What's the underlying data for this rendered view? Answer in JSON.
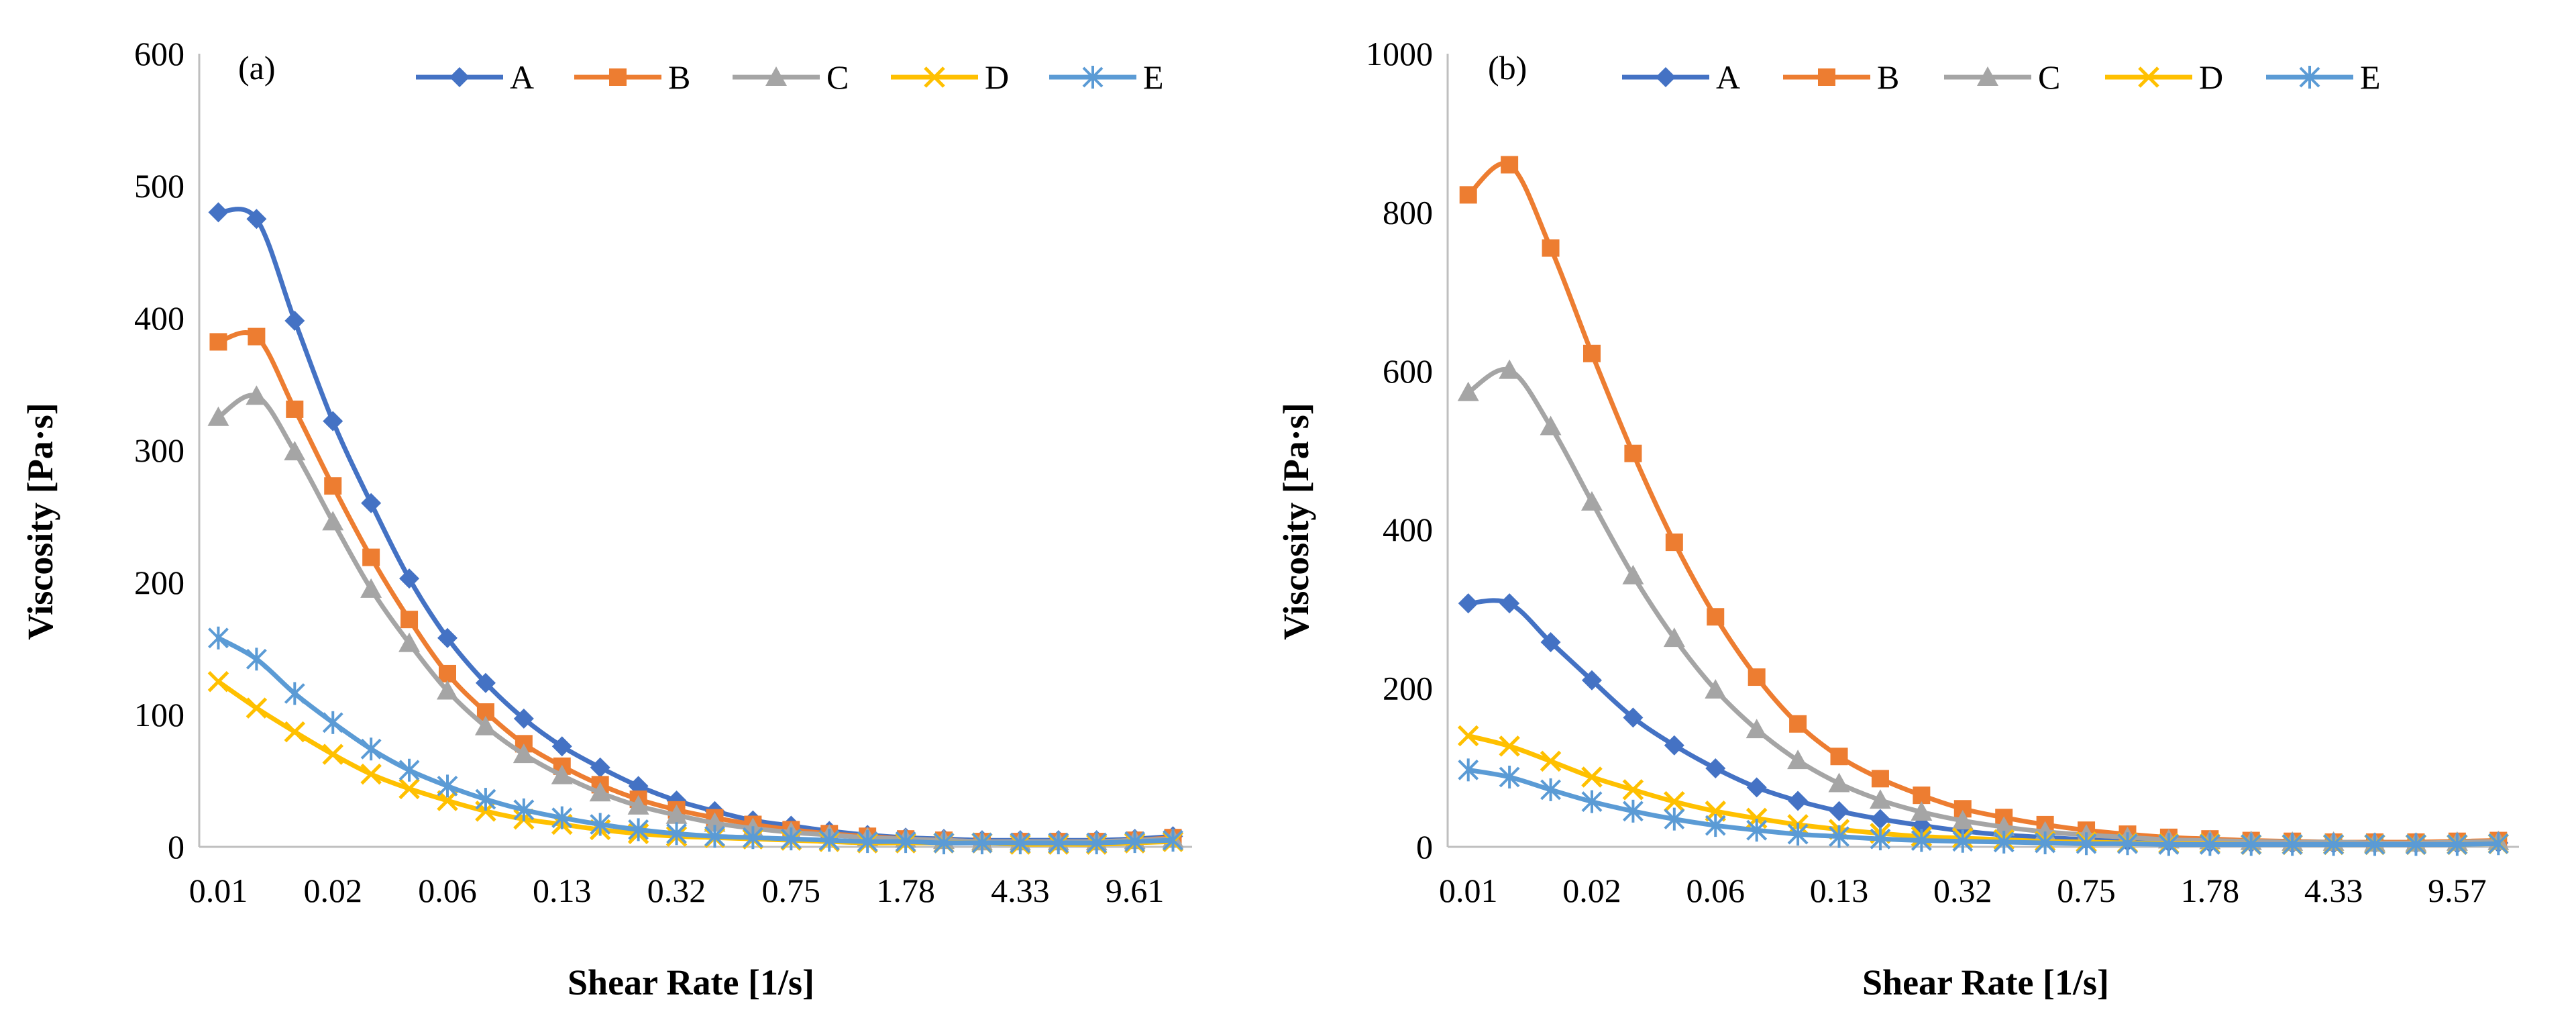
{
  "chart_data": [
    {
      "type": "line",
      "panel_label": "(a)",
      "xlabel": "Shear Rate [1/s]",
      "ylabel": "Viscosity [Pa·s]",
      "ylim": [
        0,
        600
      ],
      "yticks": [
        "0",
        "100",
        "200",
        "300",
        "400",
        "500",
        "600"
      ],
      "xticks": [
        "0.01",
        "0.02",
        "0.06",
        "0.13",
        "0.32",
        "0.75",
        "1.78",
        "4.33",
        "9.61"
      ],
      "legend_position": "top",
      "grid": false,
      "series": [
        {
          "name": "A",
          "marker": "diamond",
          "color": "#4472C4",
          "values": [
            480,
            475,
            398,
            322,
            260,
            203,
            158,
            124,
            97,
            76,
            60,
            46,
            35,
            27,
            20,
            16,
            12,
            9,
            7,
            6,
            5,
            5,
            5,
            5,
            6,
            8
          ]
        },
        {
          "name": "B",
          "marker": "square",
          "color": "#ED7D31",
          "values": [
            382,
            386,
            331,
            273,
            219,
            172,
            131,
            102,
            78,
            61,
            47,
            36,
            28,
            22,
            17,
            13,
            10,
            8,
            6,
            5,
            4,
            4,
            4,
            4,
            5,
            7
          ]
        },
        {
          "name": "C",
          "marker": "triangle",
          "color": "#A5A5A5",
          "values": [
            325,
            341,
            299,
            246,
            195,
            154,
            118,
            91,
            70,
            54,
            41,
            31,
            24,
            18,
            14,
            11,
            9,
            7,
            6,
            5,
            4,
            4,
            4,
            4,
            5,
            6
          ]
        },
        {
          "name": "D",
          "marker": "x",
          "color": "#FFC000",
          "values": [
            125,
            105,
            87,
            70,
            55,
            44,
            35,
            27,
            21,
            17,
            13,
            10,
            8,
            7,
            6,
            5,
            4,
            3,
            3,
            3,
            3,
            2,
            2,
            2,
            3,
            4
          ]
        },
        {
          "name": "E",
          "marker": "asterisk",
          "color": "#5B9BD5",
          "values": [
            158,
            142,
            116,
            94,
            74,
            58,
            46,
            36,
            28,
            22,
            17,
            13,
            10,
            8,
            7,
            6,
            5,
            4,
            4,
            3,
            3,
            3,
            3,
            3,
            4,
            5
          ]
        }
      ]
    },
    {
      "type": "line",
      "panel_label": "(b)",
      "xlabel": "Shear Rate [1/s]",
      "ylabel": "Viscosity [Pa·s]",
      "ylim": [
        0,
        1000
      ],
      "yticks": [
        "0",
        "200",
        "400",
        "600",
        "800",
        "1000"
      ],
      "xticks": [
        "0.01",
        "0.02",
        "0.06",
        "0.13",
        "0.32",
        "0.75",
        "1.78",
        "4.33",
        "9.57"
      ],
      "legend_position": "top",
      "grid": false,
      "series": [
        {
          "name": "A",
          "marker": "diamond",
          "color": "#4472C4",
          "values": [
            307,
            307,
            258,
            210,
            163,
            128,
            99,
            75,
            58,
            45,
            35,
            27,
            20,
            15,
            12,
            9,
            7,
            6,
            5,
            5,
            4,
            4,
            4,
            4,
            4,
            5
          ]
        },
        {
          "name": "B",
          "marker": "square",
          "color": "#ED7D31",
          "values": [
            822,
            860,
            755,
            622,
            496,
            384,
            290,
            214,
            155,
            114,
            86,
            65,
            48,
            37,
            28,
            21,
            16,
            12,
            10,
            8,
            7,
            6,
            6,
            6,
            7,
            8
          ]
        },
        {
          "name": "C",
          "marker": "triangle",
          "color": "#A5A5A5",
          "values": [
            573,
            601,
            530,
            435,
            342,
            263,
            198,
            148,
            109,
            80,
            59,
            44,
            33,
            25,
            19,
            15,
            12,
            9,
            8,
            7,
            6,
            6,
            5,
            5,
            6,
            7
          ]
        },
        {
          "name": "D",
          "marker": "x",
          "color": "#FFC000",
          "values": [
            140,
            127,
            108,
            88,
            72,
            57,
            45,
            36,
            28,
            22,
            17,
            13,
            11,
            9,
            7,
            6,
            5,
            4,
            4,
            3,
            3,
            3,
            3,
            3,
            3,
            4
          ]
        },
        {
          "name": "E",
          "marker": "asterisk",
          "color": "#5B9BD5",
          "values": [
            97,
            88,
            72,
            57,
            45,
            35,
            27,
            21,
            16,
            13,
            10,
            8,
            7,
            6,
            5,
            4,
            4,
            3,
            3,
            3,
            3,
            3,
            3,
            3,
            3,
            4
          ]
        }
      ]
    }
  ]
}
